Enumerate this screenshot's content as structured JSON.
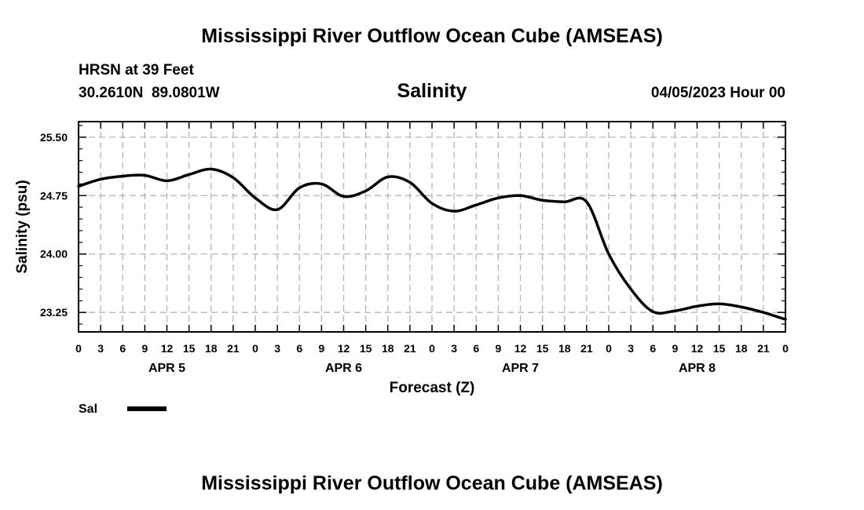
{
  "header": {
    "title_top": "Mississippi River Outflow Ocean Cube (AMSEAS)",
    "station": "HRSN at 39 Feet",
    "coords": "30.2610N  89.0801W",
    "variable": "Salinity",
    "datetime": "04/05/2023 Hour 00",
    "title_bottom": "Mississippi River Outflow Ocean Cube (AMSEAS)"
  },
  "legend": {
    "label": "Sal",
    "color": "#000000"
  },
  "chart_data": {
    "type": "line",
    "title": "Salinity",
    "xlabel": "Forecast (Z)",
    "ylabel": "Salinity (psu)",
    "xlim": [
      0,
      96
    ],
    "ylim": [
      23.0,
      25.7
    ],
    "yticks": [
      23.25,
      24.0,
      24.75,
      25.5
    ],
    "ytick_labels": [
      "23.25",
      "24.00",
      "24.75",
      "25.50"
    ],
    "xtick_labels": [
      "0",
      "3",
      "6",
      "9",
      "12",
      "15",
      "18",
      "21",
      "0",
      "3",
      "6",
      "9",
      "12",
      "15",
      "18",
      "21",
      "0",
      "3",
      "6",
      "9",
      "12",
      "15",
      "18",
      "21",
      "0",
      "3",
      "6",
      "9",
      "12",
      "15",
      "18",
      "21",
      "0"
    ],
    "day_labels": [
      {
        "label": "APR 5",
        "x": 12
      },
      {
        "label": "APR 6",
        "x": 36
      },
      {
        "label": "APR 7",
        "x": 60
      },
      {
        "label": "APR 8",
        "x": 84
      }
    ],
    "grid": true,
    "series": [
      {
        "name": "Sal",
        "color": "#000000",
        "x": [
          0,
          3,
          6,
          9,
          12,
          15,
          18,
          21,
          24,
          27,
          30,
          33,
          36,
          39,
          42,
          45,
          48,
          51,
          54,
          57,
          60,
          63,
          66,
          69,
          72,
          75,
          78,
          81,
          84,
          87,
          90,
          93,
          96
        ],
        "values": [
          24.87,
          24.96,
          25.0,
          25.01,
          24.94,
          25.02,
          25.09,
          24.98,
          24.72,
          24.57,
          24.85,
          24.9,
          24.74,
          24.81,
          24.99,
          24.92,
          24.65,
          24.55,
          24.63,
          24.72,
          24.75,
          24.69,
          24.67,
          24.67,
          24.0,
          23.55,
          23.26,
          23.27,
          23.33,
          23.36,
          23.32,
          23.25,
          23.16
        ]
      }
    ]
  }
}
